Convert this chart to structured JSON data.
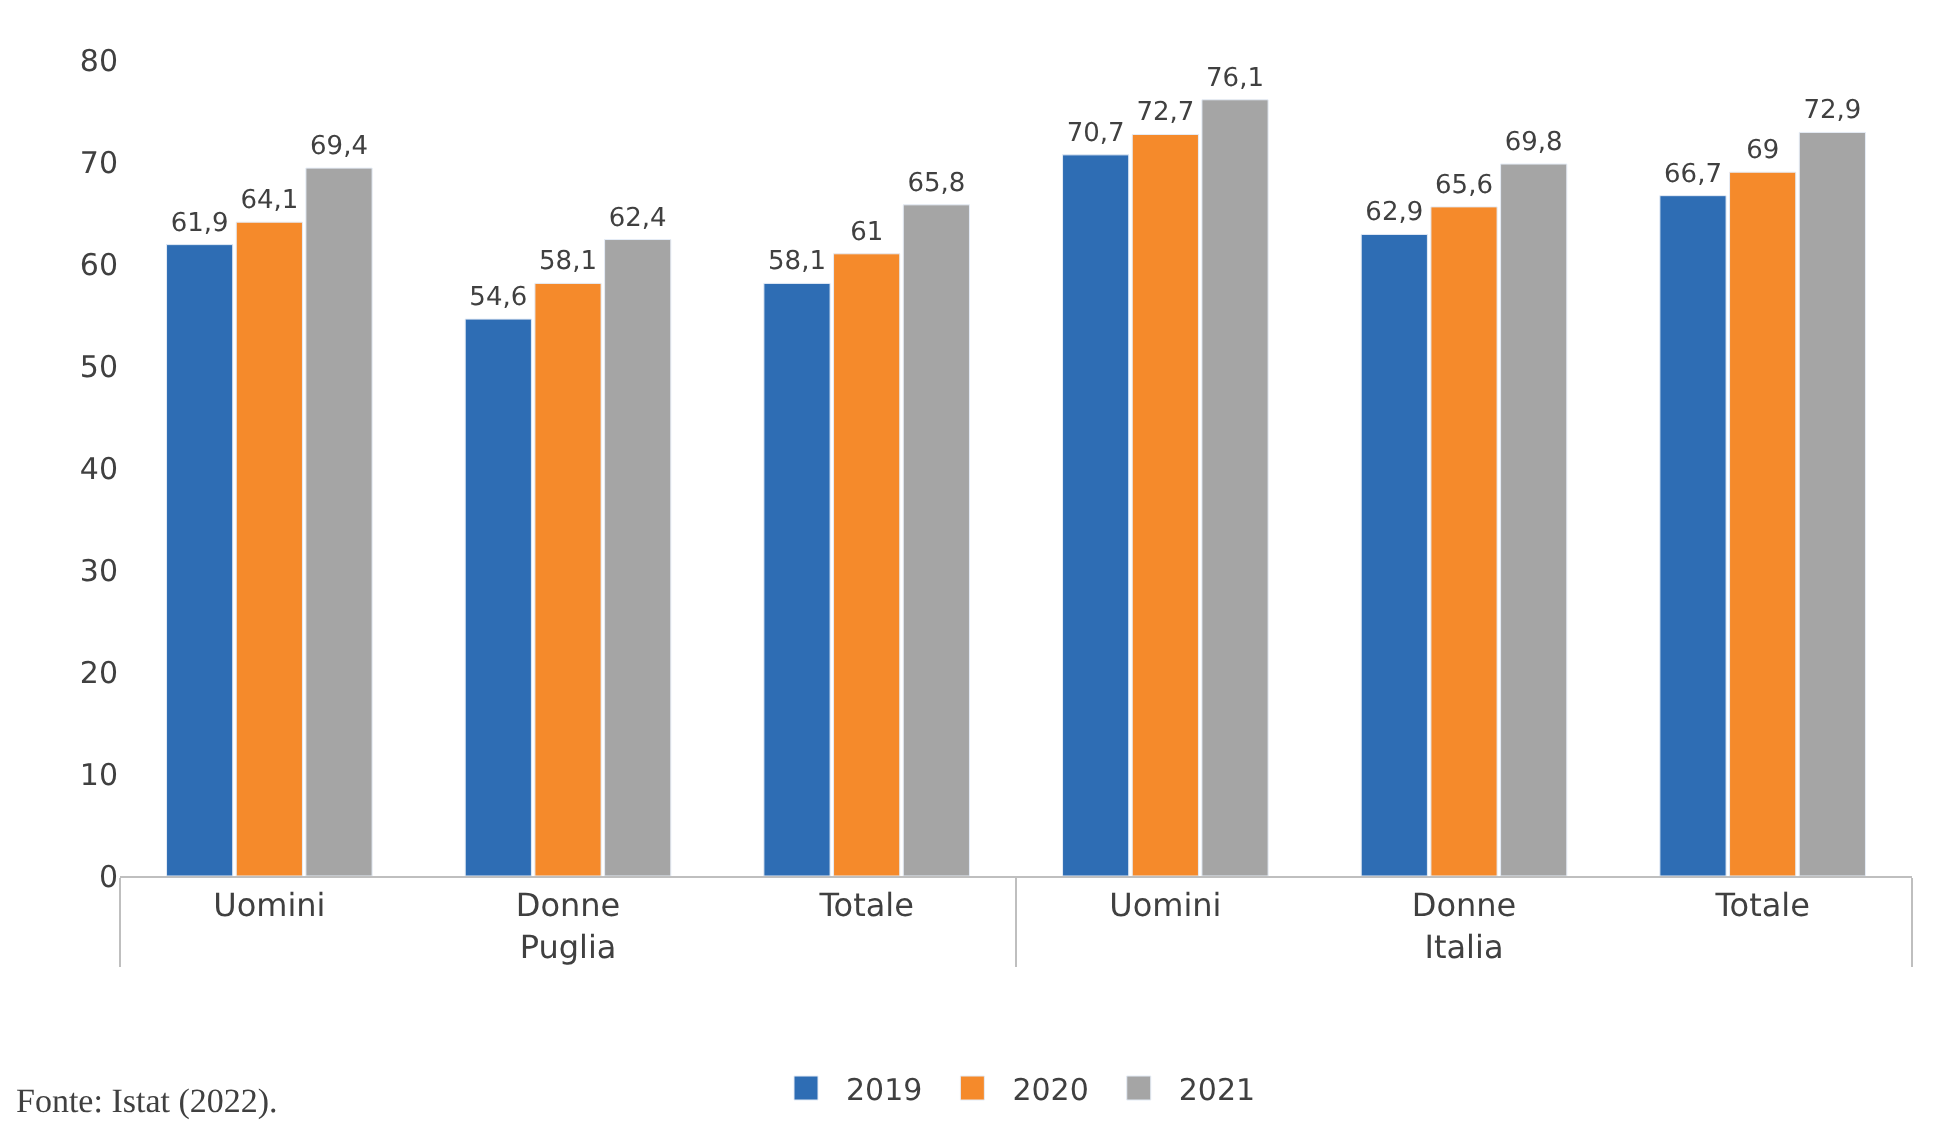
{
  "chart_data": {
    "type": "bar",
    "categories": [
      "Uomini",
      "Donne",
      "Totale",
      "Uomini",
      "Donne",
      "Totale"
    ],
    "series": [
      {
        "name": "2019",
        "color": "#2e6db4",
        "values": [
          61.9,
          54.6,
          58.1,
          70.7,
          62.9,
          66.7
        ],
        "value_labels": [
          "61,9",
          "54,6",
          "58,1",
          "70,7",
          "62,9",
          "66,7"
        ]
      },
      {
        "name": "2020",
        "color": "#f58a2b",
        "values": [
          64.1,
          58.1,
          61,
          72.7,
          65.6,
          69
        ],
        "value_labels": [
          "64,1",
          "58,1",
          "61",
          "72,7",
          "65,6",
          "69"
        ]
      },
      {
        "name": "2021",
        "color": "#a5a5a5",
        "values": [
          69.4,
          62.4,
          65.8,
          76.1,
          69.8,
          72.9
        ],
        "value_labels": [
          "69,4",
          "62,4",
          "65,8",
          "76,1",
          "69,8",
          "72,9"
        ]
      }
    ],
    "ylim": [
      0,
      80
    ],
    "yticks": [
      0,
      10,
      20,
      30,
      40,
      50,
      60,
      70,
      80
    ],
    "legend": "bottom",
    "annotations": [
      "Puglia",
      "Italia",
      "Fonte: Istat (2022)."
    ]
  }
}
